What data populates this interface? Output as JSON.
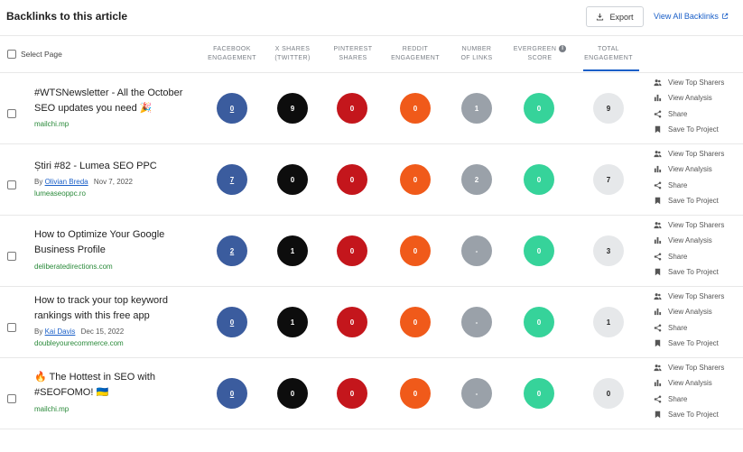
{
  "header": {
    "title": "Backlinks to this article",
    "export_label": "Export",
    "view_all_label": "View All Backlinks"
  },
  "columns": {
    "select_page": "Select Page",
    "facebook": [
      "FACEBOOK",
      "ENGAGEMENT"
    ],
    "x_shares": [
      "X SHARES",
      "(TWITTER)"
    ],
    "pinterest": [
      "PINTEREST",
      "SHARES"
    ],
    "reddit": [
      "REDDIT",
      "ENGAGEMENT"
    ],
    "links": [
      "NUMBER",
      "OF LINKS"
    ],
    "evergreen": [
      "EVERGREEN",
      "SCORE"
    ],
    "total": [
      "TOTAL",
      "ENGAGEMENT"
    ]
  },
  "actions": {
    "view_top_sharers": "View Top Sharers",
    "view_analysis": "View Analysis",
    "share": "Share",
    "save_to_project": "Save To Project"
  },
  "colors": {
    "facebook": "#3b5c9e",
    "x": "#0d0d0d",
    "pinterest": "#c4161c",
    "reddit": "#f05a1a",
    "links": "#9aa1a9",
    "evergreen": "#36d39a",
    "total": "#e6e8ea",
    "accent": "#1a5fc8",
    "domain": "#2a8a3a"
  },
  "rows": [
    {
      "title_line1": "#WTSNewsletter - All the October",
      "title_line2": "SEO updates you need 🎉",
      "author_prefix": "",
      "author": "",
      "date": "",
      "domain": "mailchi.mp",
      "facebook": "0",
      "x": "9",
      "pinterest": "0",
      "reddit": "0",
      "links": "1",
      "evergreen": "0",
      "total": "9"
    },
    {
      "title_line1": "Știri #82 - Lumea SEO PPC",
      "title_line2": "",
      "author_prefix": "By",
      "author": "Olivian Breda",
      "date": "Nov 7, 2022",
      "domain": "lumeaseoppc.ro",
      "facebook": "7",
      "x": "0",
      "pinterest": "0",
      "reddit": "0",
      "links": "2",
      "evergreen": "0",
      "total": "7"
    },
    {
      "title_line1": "How to Optimize Your Google",
      "title_line2": "Business Profile",
      "author_prefix": "",
      "author": "",
      "date": "",
      "domain": "deliberatedirections.com",
      "facebook": "2",
      "x": "1",
      "pinterest": "0",
      "reddit": "0",
      "links": "-",
      "evergreen": "0",
      "total": "3"
    },
    {
      "title_line1": "How to track your top keyword",
      "title_line2": "rankings with this free app",
      "author_prefix": "By",
      "author": "Kai Davis",
      "date": "Dec 15, 2022",
      "domain": "doubleyourecommerce.com",
      "facebook": "0",
      "x": "1",
      "pinterest": "0",
      "reddit": "0",
      "links": "-",
      "evergreen": "0",
      "total": "1"
    },
    {
      "title_line1": "🔥 The Hottest in SEO with",
      "title_line2": "#SEOFOMO! 🇺🇦",
      "author_prefix": "",
      "author": "",
      "date": "",
      "domain": "mailchi.mp",
      "facebook": "0",
      "x": "0",
      "pinterest": "0",
      "reddit": "0",
      "links": "-",
      "evergreen": "0",
      "total": "0"
    }
  ]
}
